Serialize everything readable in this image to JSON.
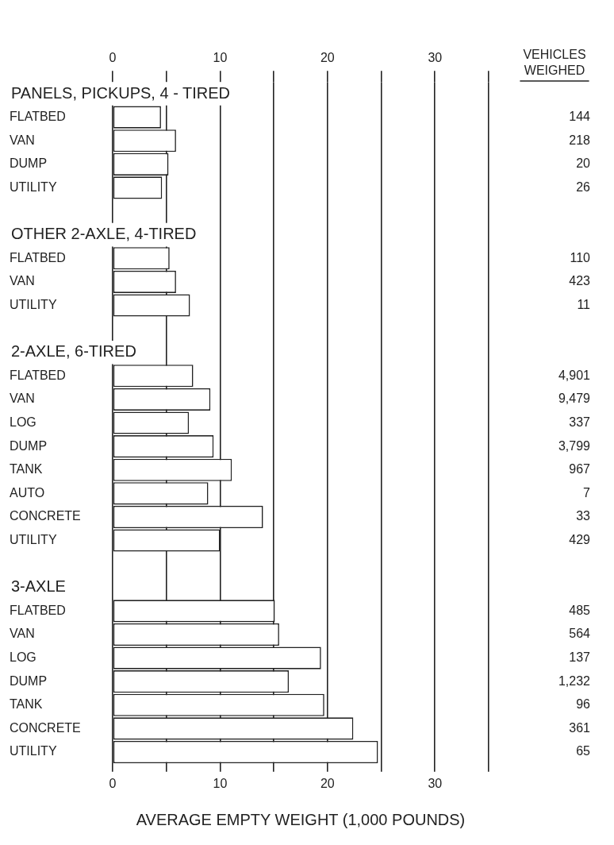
{
  "chart_data": {
    "type": "bar",
    "orientation": "horizontal",
    "xlabel": "AVERAGE EMPTY WEIGHT (1,000 POUNDS)",
    "categories": [
      "PANELS, PICKUPS, 4 - TIRED",
      "FLATBED",
      "VAN",
      "DUMP",
      "UTILITY",
      null,
      "OTHER 2-AXLE, 4-TIRED",
      "FLATBED",
      "VAN",
      "UTILITY",
      null,
      "2-AXLE, 6-TIRED",
      "FLATBED",
      "VAN",
      "LOG",
      "DUMP",
      "TANK",
      "AUTO",
      "CONCRETE",
      "UTILITY",
      null,
      "3-AXLE",
      "FLATBED",
      "VAN",
      "LOG",
      "DUMP",
      "TANK",
      "CONCRETE",
      "UTILITY"
    ],
    "values": [
      null,
      4.5,
      5.9,
      5.2,
      4.6,
      null,
      null,
      5.3,
      5.9,
      7.2,
      null,
      null,
      7.5,
      9.1,
      7.1,
      9.4,
      11.1,
      8.9,
      14.0,
      10.0,
      null,
      null,
      15.1,
      15.5,
      19.4,
      16.4,
      19.7,
      22.4,
      24.7
    ],
    "color": "#ffffff",
    "annotations": [
      "VEHICLES WEIGHED",
      "144",
      "218",
      "20",
      "26",
      "110",
      "423",
      "11",
      "4,901",
      "9,479",
      "337",
      "3,799",
      "967",
      "7",
      "33",
      "429",
      "485",
      "564",
      "137",
      "1,232",
      "96",
      "361",
      "65"
    ],
    "xlim": [
      0,
      35
    ],
    "xticks": [
      0,
      {
        "value": 5,
        "label": null
      },
      10,
      {
        "value": 15,
        "label": null
      },
      20,
      {
        "value": 25,
        "label": null
      },
      30,
      {
        "value": 35,
        "label": null
      }
    ],
    "x2lim": [
      0,
      35
    ],
    "x2ticks": [
      0,
      {
        "value": 5,
        "label": null
      },
      10,
      {
        "value": 15,
        "label": null
      },
      20,
      {
        "value": 25,
        "label": null
      },
      30,
      {
        "value": 35,
        "label": null
      }
    ],
    "grid": "x"
  }
}
